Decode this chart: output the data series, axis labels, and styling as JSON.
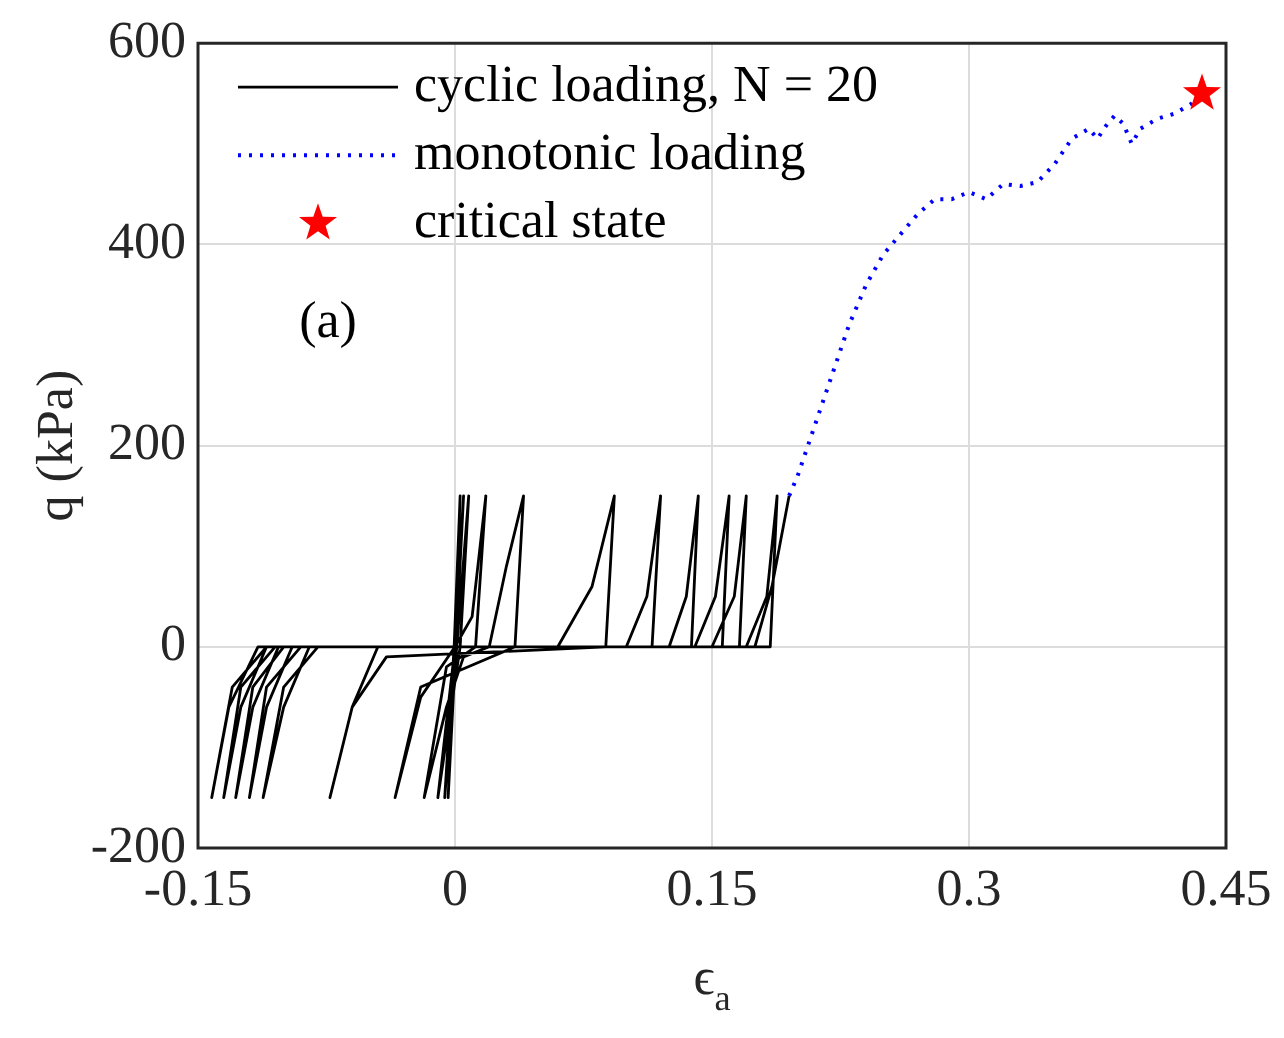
{
  "chart_data": {
    "type": "line",
    "xlabel": "ϵ$_{a}$",
    "ylabel": "q (kPa)",
    "xlim": [
      -0.15,
      0.45
    ],
    "xticks": [
      -0.15,
      0,
      0.15,
      0.3,
      0.45
    ],
    "ylim": [
      -200,
      600
    ],
    "yticks": [
      -200,
      0,
      200,
      400,
      600
    ],
    "grid": true,
    "legend": "top left",
    "annotations": [
      "(a)"
    ],
    "series": [
      {
        "name": "cyclic loading, N = 20",
        "color": "#000000",
        "line_style": "solid",
        "marker": "none",
        "x": [
          0,
          0.003,
          -0.004,
          0.005,
          -0.006,
          0.008,
          0.003,
          -0.01,
          0.0,
          0.01,
          0.018,
          0.012,
          -0.005,
          -0.018,
          -0.005,
          0.005,
          0.02,
          0.03,
          0.04,
          0.035,
          -0.02,
          -0.035,
          -0.02,
          0.0,
          0.06,
          0.08,
          0.093,
          0.088,
          -0.04,
          -0.06,
          -0.073,
          -0.06,
          -0.045,
          0.1,
          0.112,
          0.12,
          0.115,
          -0.08,
          -0.1,
          -0.112,
          -0.1,
          -0.085,
          0.125,
          0.135,
          0.142,
          0.138,
          -0.09,
          -0.11,
          -0.12,
          -0.11,
          -0.095,
          0.14,
          0.152,
          0.16,
          0.156,
          -0.1,
          -0.118,
          -0.128,
          -0.118,
          -0.103,
          0.15,
          0.163,
          0.17,
          0.166,
          -0.105,
          -0.125,
          -0.135,
          -0.125,
          -0.11,
          0.17,
          0.182,
          0.188,
          0.184,
          -0.11,
          -0.13,
          -0.142,
          -0.132,
          -0.115,
          0.175,
          0.185,
          0.195
        ],
        "values": [
          0,
          150,
          -150,
          150,
          -150,
          150,
          0,
          -150,
          0,
          30,
          150,
          0,
          -20,
          -150,
          -60,
          -10,
          0,
          80,
          150,
          0,
          -40,
          -150,
          -50,
          0,
          0,
          60,
          150,
          0,
          -10,
          -60,
          -150,
          -60,
          0,
          0,
          50,
          150,
          0,
          0,
          -40,
          -150,
          -60,
          0,
          0,
          50,
          150,
          0,
          0,
          -40,
          -150,
          -60,
          0,
          0,
          50,
          150,
          0,
          0,
          -40,
          -150,
          -60,
          0,
          0,
          50,
          150,
          0,
          0,
          -40,
          -150,
          -60,
          0,
          0,
          50,
          150,
          0,
          0,
          -40,
          -150,
          -60,
          0,
          0,
          60,
          150
        ]
      },
      {
        "name": "monotonic loading",
        "color": "#0000ff",
        "line_style": "dotted",
        "marker": "none",
        "x": [
          0.195,
          0.2,
          0.21,
          0.22,
          0.23,
          0.24,
          0.25,
          0.26,
          0.27,
          0.28,
          0.29,
          0.3,
          0.31,
          0.32,
          0.33,
          0.34,
          0.35,
          0.36,
          0.37,
          0.375,
          0.38,
          0.385,
          0.39,
          0.395,
          0.4,
          0.41,
          0.42,
          0.43,
          0.435
        ],
        "values": [
          150,
          170,
          220,
          270,
          320,
          360,
          390,
          410,
          430,
          445,
          445,
          452,
          445,
          460,
          458,
          462,
          480,
          505,
          515,
          505,
          518,
          528,
          520,
          500,
          515,
          525,
          530,
          540,
          552
        ]
      },
      {
        "name": "critical state",
        "type": "scatter",
        "color": "#ff0000",
        "marker": "star",
        "x": [
          0.436
        ],
        "values": [
          550
        ]
      }
    ]
  }
}
